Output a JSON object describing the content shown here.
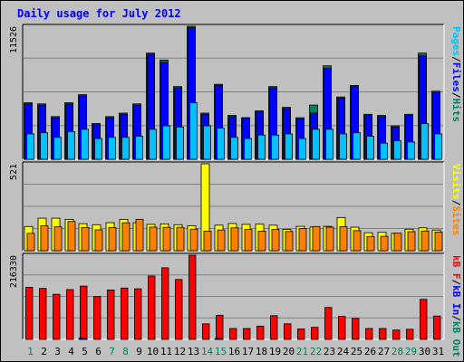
{
  "title": "Daily usage for July 2012",
  "colors": {
    "background": "#c0c0c0",
    "outer_border": "#000000",
    "title": "#0000ff",
    "grid": "#808080",
    "hits": "#00805c",
    "files": "#0000ff",
    "pages": "#00c0ff",
    "visits": "#ffff00",
    "sites": "#ff8000",
    "kb_in": "#0000ff",
    "kb_out": "#00805c",
    "kb_f": "#ff0000",
    "day_weekday": "#000000",
    "day_weekend": "#00805c"
  },
  "chart_data": [
    {
      "type": "bar",
      "panel": "hits-files-pages",
      "ymax": 11526,
      "ymax_label": "11526",
      "right_label": [
        "Pages",
        "/",
        "Files",
        "/",
        "Hits"
      ],
      "categories": [
        "1",
        "2",
        "3",
        "4",
        "5",
        "6",
        "7",
        "8",
        "9",
        "10",
        "11",
        "12",
        "13",
        "14",
        "15",
        "16",
        "17",
        "18",
        "19",
        "20",
        "21",
        "22",
        "23",
        "24",
        "25",
        "26",
        "27",
        "28",
        "29",
        "30",
        "31"
      ],
      "series": [
        {
          "name": "Hits",
          "values": [
            4900,
            4800,
            3700,
            4900,
            5600,
            3100,
            3700,
            4000,
            4800,
            9200,
            8600,
            6300,
            11526,
            4000,
            6500,
            3800,
            3600,
            4200,
            6300,
            4500,
            3600,
            4700,
            8100,
            5400,
            6400,
            3900,
            3800,
            2900,
            3900,
            9200,
            5900
          ]
        },
        {
          "name": "Files",
          "values": [
            4800,
            4700,
            3600,
            4800,
            5500,
            3000,
            3600,
            3900,
            4700,
            9100,
            8400,
            6200,
            11400,
            3900,
            6400,
            3700,
            3600,
            4100,
            6200,
            4400,
            3500,
            4000,
            7900,
            5300,
            6300,
            3800,
            3700,
            2800,
            3800,
            9000,
            5800
          ]
        },
        {
          "name": "Pages",
          "values": [
            2200,
            2300,
            1900,
            2400,
            2600,
            1800,
            1900,
            1900,
            2000,
            2600,
            2900,
            2800,
            4900,
            2900,
            2700,
            1900,
            1800,
            2100,
            2100,
            2200,
            1800,
            2600,
            2600,
            2200,
            2300,
            2000,
            1400,
            1600,
            1500,
            3100,
            2200
          ]
        }
      ]
    },
    {
      "type": "bar",
      "panel": "visits-sites",
      "ymax": 521,
      "ymax_label": "521",
      "right_label": [
        "Visits",
        "/",
        "Sites"
      ],
      "categories": [
        "1",
        "2",
        "3",
        "4",
        "5",
        "6",
        "7",
        "8",
        "9",
        "10",
        "11",
        "12",
        "13",
        "14",
        "15",
        "16",
        "17",
        "18",
        "19",
        "20",
        "21",
        "22",
        "23",
        "24",
        "25",
        "26",
        "27",
        "28",
        "29",
        "30",
        "31"
      ],
      "series": [
        {
          "name": "Visits",
          "values": [
            145,
            195,
            195,
            188,
            162,
            156,
            168,
            188,
            168,
            158,
            161,
            156,
            150,
            521,
            153,
            163,
            158,
            159,
            153,
            127,
            146,
            142,
            146,
            199,
            141,
            108,
            110,
            104,
            129,
            137,
            124
          ]
        },
        {
          "name": "Sites",
          "values": [
            104,
            149,
            143,
            175,
            139,
            125,
            139,
            167,
            188,
            141,
            140,
            140,
            129,
            117,
            124,
            137,
            127,
            117,
            128,
            115,
            133,
            145,
            141,
            144,
            120,
            85,
            86,
            105,
            114,
            118,
            112
          ]
        }
      ]
    },
    {
      "type": "bar",
      "panel": "kbytes",
      "ymax": 216330,
      "ymax_label": "216330",
      "right_label": [
        "kB F",
        "/",
        "kB In",
        "/",
        "kB Out"
      ],
      "categories": [
        "1",
        "2",
        "3",
        "4",
        "5",
        "6",
        "7",
        "8",
        "9",
        "10",
        "11",
        "12",
        "13",
        "14",
        "15",
        "16",
        "17",
        "18",
        "19",
        "20",
        "21",
        "22",
        "23",
        "24",
        "25",
        "26",
        "27",
        "28",
        "29",
        "30",
        "31"
      ],
      "series": [
        {
          "name": "kB In",
          "values": [
            0,
            0,
            0,
            0,
            3000,
            0,
            0,
            0,
            0,
            0,
            0,
            0,
            0,
            0,
            2000,
            0,
            0,
            0,
            0,
            0,
            0,
            0,
            0,
            0,
            0,
            0,
            0,
            0,
            0,
            0,
            0
          ]
        },
        {
          "name": "kB Out",
          "values": [
            0,
            0,
            0,
            0,
            0,
            0,
            0,
            0,
            0,
            0,
            0,
            0,
            0,
            0,
            0,
            0,
            0,
            0,
            0,
            0,
            0,
            0,
            0,
            0,
            0,
            0,
            0,
            0,
            0,
            0,
            0
          ]
        },
        {
          "name": "kB F",
          "values": [
            134000,
            131000,
            116000,
            128000,
            137000,
            110000,
            127000,
            132000,
            130000,
            163000,
            184000,
            154000,
            216330,
            40000,
            62000,
            28000,
            28000,
            34000,
            61000,
            40000,
            27000,
            31000,
            82000,
            59000,
            54000,
            28000,
            28000,
            24000,
            26000,
            103000,
            60000
          ]
        }
      ]
    }
  ],
  "x_axis": {
    "days": [
      "1",
      "2",
      "3",
      "4",
      "5",
      "6",
      "7",
      "8",
      "9",
      "10",
      "11",
      "12",
      "13",
      "14",
      "15",
      "16",
      "17",
      "18",
      "19",
      "20",
      "21",
      "22",
      "23",
      "24",
      "25",
      "26",
      "27",
      "28",
      "29",
      "30",
      "31"
    ],
    "weekend": [
      1,
      7,
      8,
      14,
      15,
      21,
      22,
      28,
      29
    ]
  }
}
